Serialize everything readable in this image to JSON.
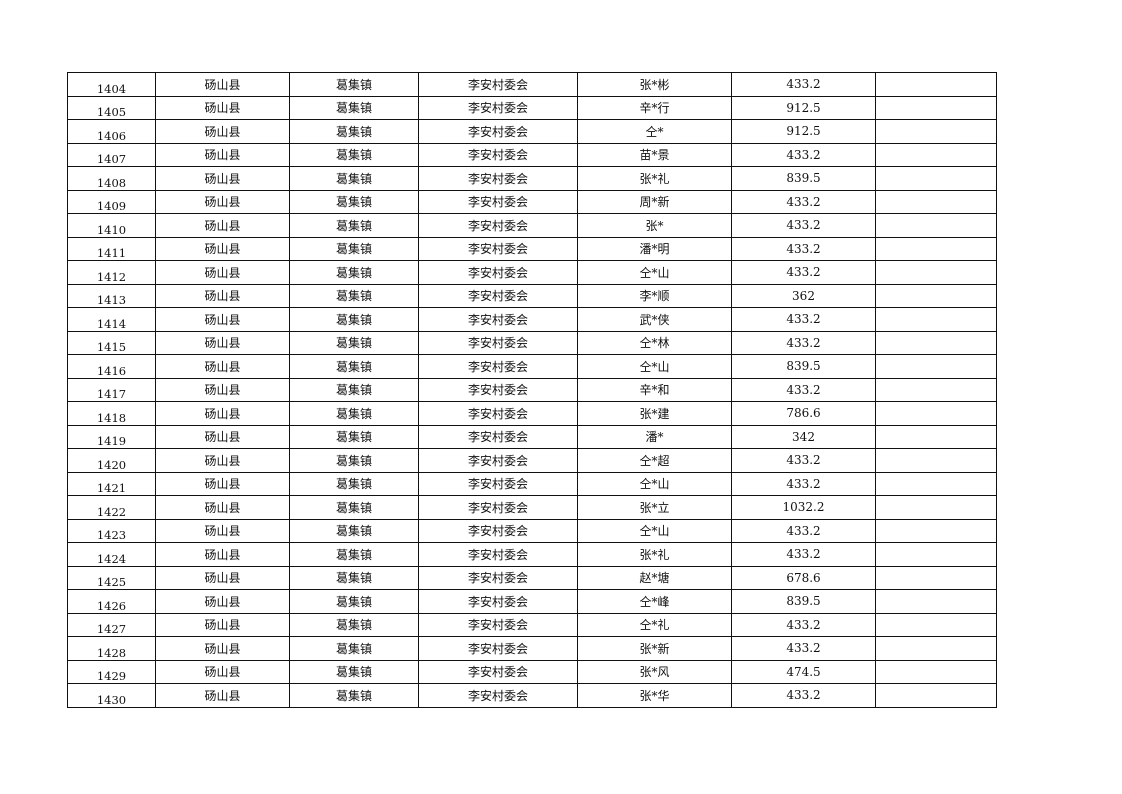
{
  "rows": [
    {
      "no": "1404",
      "county": "砀山县",
      "town": "葛集镇",
      "village": "李安村委会",
      "name": "张*彬",
      "amount": "433.2",
      "note": ""
    },
    {
      "no": "1405",
      "county": "砀山县",
      "town": "葛集镇",
      "village": "李安村委会",
      "name": "辛*行",
      "amount": "912.5",
      "note": ""
    },
    {
      "no": "1406",
      "county": "砀山县",
      "town": "葛集镇",
      "village": "李安村委会",
      "name": "仝*",
      "amount": "912.5",
      "note": ""
    },
    {
      "no": "1407",
      "county": "砀山县",
      "town": "葛集镇",
      "village": "李安村委会",
      "name": "苗*景",
      "amount": "433.2",
      "note": ""
    },
    {
      "no": "1408",
      "county": "砀山县",
      "town": "葛集镇",
      "village": "李安村委会",
      "name": "张*礼",
      "amount": "839.5",
      "note": ""
    },
    {
      "no": "1409",
      "county": "砀山县",
      "town": "葛集镇",
      "village": "李安村委会",
      "name": "周*新",
      "amount": "433.2",
      "note": ""
    },
    {
      "no": "1410",
      "county": "砀山县",
      "town": "葛集镇",
      "village": "李安村委会",
      "name": "张*",
      "amount": "433.2",
      "note": ""
    },
    {
      "no": "1411",
      "county": "砀山县",
      "town": "葛集镇",
      "village": "李安村委会",
      "name": "潘*明",
      "amount": "433.2",
      "note": ""
    },
    {
      "no": "1412",
      "county": "砀山县",
      "town": "葛集镇",
      "village": "李安村委会",
      "name": "仝*山",
      "amount": "433.2",
      "note": ""
    },
    {
      "no": "1413",
      "county": "砀山县",
      "town": "葛集镇",
      "village": "李安村委会",
      "name": "李*顺",
      "amount": "362",
      "note": ""
    },
    {
      "no": "1414",
      "county": "砀山县",
      "town": "葛集镇",
      "village": "李安村委会",
      "name": "武*侠",
      "amount": "433.2",
      "note": ""
    },
    {
      "no": "1415",
      "county": "砀山县",
      "town": "葛集镇",
      "village": "李安村委会",
      "name": "仝*林",
      "amount": "433.2",
      "note": ""
    },
    {
      "no": "1416",
      "county": "砀山县",
      "town": "葛集镇",
      "village": "李安村委会",
      "name": "仝*山",
      "amount": "839.5",
      "note": ""
    },
    {
      "no": "1417",
      "county": "砀山县",
      "town": "葛集镇",
      "village": "李安村委会",
      "name": "辛*和",
      "amount": "433.2",
      "note": ""
    },
    {
      "no": "1418",
      "county": "砀山县",
      "town": "葛集镇",
      "village": "李安村委会",
      "name": "张*建",
      "amount": "786.6",
      "note": ""
    },
    {
      "no": "1419",
      "county": "砀山县",
      "town": "葛集镇",
      "village": "李安村委会",
      "name": "潘*",
      "amount": "342",
      "note": ""
    },
    {
      "no": "1420",
      "county": "砀山县",
      "town": "葛集镇",
      "village": "李安村委会",
      "name": "仝*超",
      "amount": "433.2",
      "note": ""
    },
    {
      "no": "1421",
      "county": "砀山县",
      "town": "葛集镇",
      "village": "李安村委会",
      "name": "仝*山",
      "amount": "433.2",
      "note": ""
    },
    {
      "no": "1422",
      "county": "砀山县",
      "town": "葛集镇",
      "village": "李安村委会",
      "name": "张*立",
      "amount": "1032.2",
      "note": ""
    },
    {
      "no": "1423",
      "county": "砀山县",
      "town": "葛集镇",
      "village": "李安村委会",
      "name": "仝*山",
      "amount": "433.2",
      "note": ""
    },
    {
      "no": "1424",
      "county": "砀山县",
      "town": "葛集镇",
      "village": "李安村委会",
      "name": "张*礼",
      "amount": "433.2",
      "note": ""
    },
    {
      "no": "1425",
      "county": "砀山县",
      "town": "葛集镇",
      "village": "李安村委会",
      "name": "赵*塘",
      "amount": "678.6",
      "note": ""
    },
    {
      "no": "1426",
      "county": "砀山县",
      "town": "葛集镇",
      "village": "李安村委会",
      "name": "仝*峰",
      "amount": "839.5",
      "note": ""
    },
    {
      "no": "1427",
      "county": "砀山县",
      "town": "葛集镇",
      "village": "李安村委会",
      "name": "仝*礼",
      "amount": "433.2",
      "note": ""
    },
    {
      "no": "1428",
      "county": "砀山县",
      "town": "葛集镇",
      "village": "李安村委会",
      "name": "张*新",
      "amount": "433.2",
      "note": ""
    },
    {
      "no": "1429",
      "county": "砀山县",
      "town": "葛集镇",
      "village": "李安村委会",
      "name": "张*风",
      "amount": "474.5",
      "note": ""
    },
    {
      "no": "1430",
      "county": "砀山县",
      "town": "葛集镇",
      "village": "李安村委会",
      "name": "张*华",
      "amount": "433.2",
      "note": ""
    }
  ]
}
